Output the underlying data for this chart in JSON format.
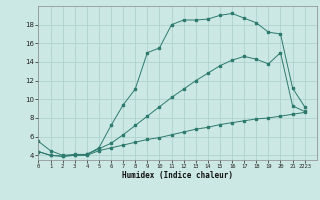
{
  "title": "",
  "xlabel": "Humidex (Indice chaleur)",
  "bg_color": "#cce8e4",
  "line_color": "#2d7a6e",
  "grid_color": "#aacfcb",
  "xlim": [
    0,
    23
  ],
  "ylim": [
    3.5,
    20
  ],
  "yticks": [
    4,
    6,
    8,
    10,
    12,
    14,
    16,
    18
  ],
  "xtick_labels": [
    "0",
    "1",
    "2",
    "3",
    "4",
    "5",
    "6",
    "7",
    "8",
    "9",
    "10",
    "11",
    "12",
    "13",
    "14",
    "15",
    "16",
    "17",
    "18",
    "19",
    "20",
    "21",
    "2223"
  ],
  "l1_x": [
    0,
    1,
    2,
    3,
    4,
    5,
    6,
    7,
    8,
    9,
    10,
    11,
    12,
    13,
    14,
    15,
    16,
    17,
    18,
    19,
    20,
    21,
    22
  ],
  "l1_y": [
    5.5,
    4.5,
    4.0,
    4.1,
    4.1,
    4.8,
    7.2,
    9.4,
    11.1,
    15.0,
    15.5,
    18.0,
    18.5,
    18.5,
    18.6,
    19.0,
    19.2,
    18.7,
    18.2,
    17.2,
    17.0,
    11.2,
    9.2
  ],
  "l2_x": [
    0,
    1,
    2,
    3,
    4,
    5,
    6,
    7,
    8,
    9,
    10,
    11,
    12,
    13,
    14,
    15,
    16,
    17,
    18,
    19,
    20,
    21,
    22
  ],
  "l2_y": [
    4.4,
    4.0,
    3.9,
    4.0,
    4.1,
    4.7,
    5.3,
    6.2,
    7.2,
    8.2,
    9.2,
    10.2,
    11.1,
    12.0,
    12.8,
    13.6,
    14.2,
    14.6,
    14.3,
    13.8,
    15.0,
    9.3,
    8.7
  ],
  "l3_x": [
    0,
    1,
    2,
    3,
    4,
    5,
    6,
    7,
    8,
    9,
    10,
    11,
    12,
    13,
    14,
    15,
    16,
    17,
    18,
    19,
    20,
    21,
    22
  ],
  "l3_y": [
    4.4,
    4.0,
    3.9,
    4.0,
    4.0,
    4.5,
    4.8,
    5.1,
    5.4,
    5.7,
    5.9,
    6.2,
    6.5,
    6.8,
    7.0,
    7.3,
    7.5,
    7.7,
    7.9,
    8.0,
    8.2,
    8.4,
    8.6
  ]
}
